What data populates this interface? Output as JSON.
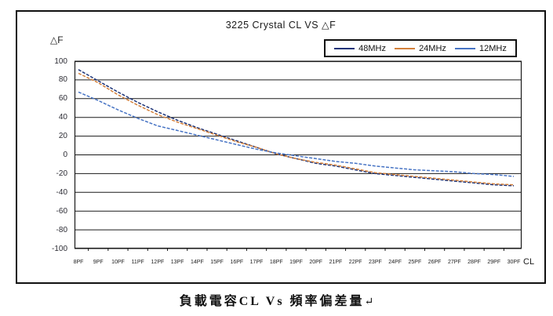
{
  "chart": {
    "title": "3225 Crystal CL VS △F",
    "y_axis_title": "△F",
    "x_axis_title": "CL"
  },
  "caption": {
    "text": "負載電容CL Vs 頻率偏差量",
    "return_mark": "↵"
  },
  "chart_data": {
    "type": "line",
    "title": "3225 Crystal CL VS △F",
    "xlabel": "CL",
    "ylabel": "△F (ppm)",
    "categories": [
      "8PF",
      "9PF",
      "10PF",
      "11PF",
      "12PF",
      "13PF",
      "14PF",
      "15PF",
      "16PF",
      "17PF",
      "18PF",
      "19PF",
      "20PF",
      "21PF",
      "22PF",
      "23PF",
      "24PF",
      "25PF",
      "26PF",
      "27PF",
      "28PF",
      "29PF",
      "30PF"
    ],
    "series": [
      {
        "name": "48MHz",
        "color": "#1a3278",
        "values": [
          91,
          79,
          67,
          56,
          46,
          37,
          29,
          22,
          15,
          8,
          1,
          -4,
          -9,
          -12,
          -16,
          -20,
          -22,
          -24,
          -26,
          -28,
          -30,
          -32,
          -33
        ]
      },
      {
        "name": "24MHz",
        "color": "#d4803a",
        "values": [
          87,
          77,
          64,
          53,
          43,
          35,
          28,
          21,
          14,
          8,
          1,
          -4,
          -8,
          -11,
          -15,
          -19,
          -21,
          -23,
          -25,
          -27,
          -29,
          -31,
          -32
        ]
      },
      {
        "name": "12MHz",
        "color": "#4673c4",
        "values": [
          67,
          58,
          48,
          39,
          31,
          26,
          21,
          16,
          11,
          6,
          2,
          -1,
          -4,
          -7,
          -9,
          -12,
          -14,
          -16,
          -17,
          -18,
          -20,
          -21,
          -23
        ]
      }
    ],
    "yticks": [
      100,
      80,
      60,
      40,
      20,
      0,
      -20,
      -40,
      -60,
      -80,
      -100
    ],
    "ylim": [
      -100,
      100
    ],
    "grid": "horizontal",
    "gridline_color": "#1a1a1a",
    "legend_position": "top-right"
  }
}
